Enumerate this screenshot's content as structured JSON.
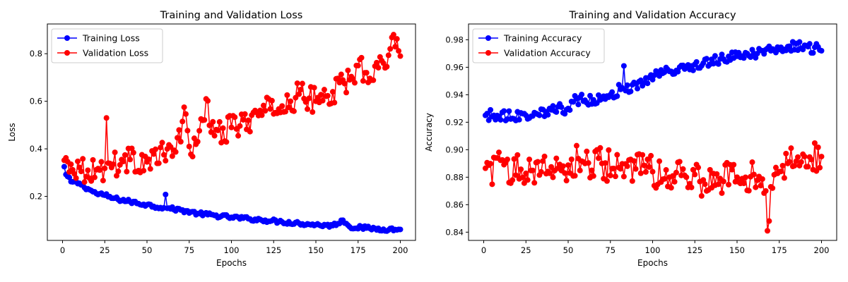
{
  "chart_data": [
    {
      "type": "line",
      "title": "Training and Validation Loss",
      "xlabel": "Epochs",
      "ylabel": "Loss",
      "xlim": [
        -9,
        209
      ],
      "ylim": [
        0.015,
        0.925
      ],
      "xticks": [
        0,
        25,
        50,
        75,
        100,
        125,
        150,
        175,
        200
      ],
      "yticks": [
        0.2,
        0.4,
        0.6,
        0.8
      ],
      "ytick_labels": [
        "0.2",
        "0.4",
        "0.6",
        "0.8"
      ],
      "grid": false,
      "legend_position": "top-left",
      "series": [
        {
          "name": "Training Loss",
          "color": "#0000ff",
          "marker": "circle",
          "keypoints": [
            [
              1,
              0.325
            ],
            [
              2,
              0.292
            ],
            [
              5,
              0.262
            ],
            [
              10,
              0.255
            ],
            [
              15,
              0.232
            ],
            [
              20,
              0.212
            ],
            [
              25,
              0.205
            ],
            [
              30,
              0.192
            ],
            [
              40,
              0.178
            ],
            [
              50,
              0.165
            ],
            [
              60,
              0.152
            ],
            [
              61,
              0.208
            ],
            [
              62,
              0.15
            ],
            [
              70,
              0.143
            ],
            [
              80,
              0.128
            ],
            [
              90,
              0.12
            ],
            [
              100,
              0.112
            ],
            [
              110,
              0.106
            ],
            [
              120,
              0.1
            ],
            [
              130,
              0.093
            ],
            [
              140,
              0.087
            ],
            [
              150,
              0.081
            ],
            [
              160,
              0.077
            ],
            [
              166,
              0.1
            ],
            [
              170,
              0.072
            ],
            [
              180,
              0.067
            ],
            [
              190,
              0.062
            ],
            [
              200,
              0.061
            ]
          ],
          "noise": 0.008
        },
        {
          "name": "Validation Loss",
          "color": "#ff0000",
          "marker": "circle",
          "keypoints": [
            [
              1,
              0.352
            ],
            [
              5,
              0.335
            ],
            [
              10,
              0.322
            ],
            [
              15,
              0.31
            ],
            [
              20,
              0.312
            ],
            [
              25,
              0.318
            ],
            [
              26,
              0.53
            ],
            [
              27,
              0.34
            ],
            [
              30,
              0.335
            ],
            [
              40,
              0.355
            ],
            [
              50,
              0.345
            ],
            [
              60,
              0.375
            ],
            [
              70,
              0.43
            ],
            [
              72,
              0.575
            ],
            [
              75,
              0.41
            ],
            [
              80,
              0.43
            ],
            [
              85,
              0.61
            ],
            [
              88,
              0.47
            ],
            [
              90,
              0.455
            ],
            [
              100,
              0.49
            ],
            [
              110,
              0.52
            ],
            [
              120,
              0.56
            ],
            [
              130,
              0.58
            ],
            [
              135,
              0.6
            ],
            [
              140,
              0.63
            ],
            [
              150,
              0.6
            ],
            [
              160,
              0.64
            ],
            [
              170,
              0.69
            ],
            [
              175,
              0.75
            ],
            [
              180,
              0.72
            ],
            [
              190,
              0.76
            ],
            [
              196,
              0.88
            ],
            [
              200,
              0.79
            ]
          ],
          "noise": 0.055
        }
      ]
    },
    {
      "type": "line",
      "title": "Training and Validation Accuracy",
      "xlabel": "Epochs",
      "ylabel": "Accuracy",
      "xlim": [
        -9,
        209
      ],
      "ylim": [
        0.834,
        0.9915
      ],
      "xticks": [
        0,
        25,
        50,
        75,
        100,
        125,
        150,
        175,
        200
      ],
      "yticks": [
        0.84,
        0.86,
        0.88,
        0.9,
        0.92,
        0.94,
        0.96,
        0.98
      ],
      "ytick_labels": [
        "0.84",
        "0.86",
        "0.88",
        "0.90",
        "0.92",
        "0.94",
        "0.96",
        "0.98"
      ],
      "grid": false,
      "legend_position": "top-left",
      "series": [
        {
          "name": "Training Accuracy",
          "color": "#0000ff",
          "marker": "circle",
          "keypoints": [
            [
              1,
              0.925
            ],
            [
              25,
              0.925
            ],
            [
              30,
              0.927
            ],
            [
              40,
              0.929
            ],
            [
              50,
              0.93
            ],
            [
              55,
              0.937
            ],
            [
              60,
              0.936
            ],
            [
              70,
              0.937
            ],
            [
              75,
              0.94
            ],
            [
              82,
              0.945
            ],
            [
              83,
              0.961
            ],
            [
              84,
              0.943
            ],
            [
              90,
              0.948
            ],
            [
              100,
              0.951
            ],
            [
              105,
              0.958
            ],
            [
              110,
              0.957
            ],
            [
              120,
              0.96
            ],
            [
              130,
              0.963
            ],
            [
              140,
              0.966
            ],
            [
              150,
              0.968
            ],
            [
              160,
              0.97
            ],
            [
              170,
              0.972
            ],
            [
              180,
              0.975
            ],
            [
              190,
              0.976
            ],
            [
              200,
              0.972
            ]
          ],
          "noise": 0.004
        },
        {
          "name": "Validation Accuracy",
          "color": "#ff0000",
          "marker": "circle",
          "keypoints": [
            [
              1,
              0.8865
            ],
            [
              44,
              0.8865
            ],
            [
              48,
              0.883
            ],
            [
              52,
              0.893
            ],
            [
              60,
              0.89
            ],
            [
              70,
              0.89
            ],
            [
              80,
              0.887
            ],
            [
              90,
              0.886
            ],
            [
              100,
              0.884
            ],
            [
              110,
              0.88
            ],
            [
              120,
              0.88
            ],
            [
              130,
              0.878
            ],
            [
              140,
              0.879
            ],
            [
              150,
              0.88
            ],
            [
              160,
              0.882
            ],
            [
              167,
              0.87
            ],
            [
              168,
              0.841
            ],
            [
              170,
              0.873
            ],
            [
              175,
              0.884
            ],
            [
              180,
              0.89
            ],
            [
              190,
              0.895
            ],
            [
              200,
              0.895
            ]
          ],
          "noise": 0.012
        }
      ]
    }
  ]
}
